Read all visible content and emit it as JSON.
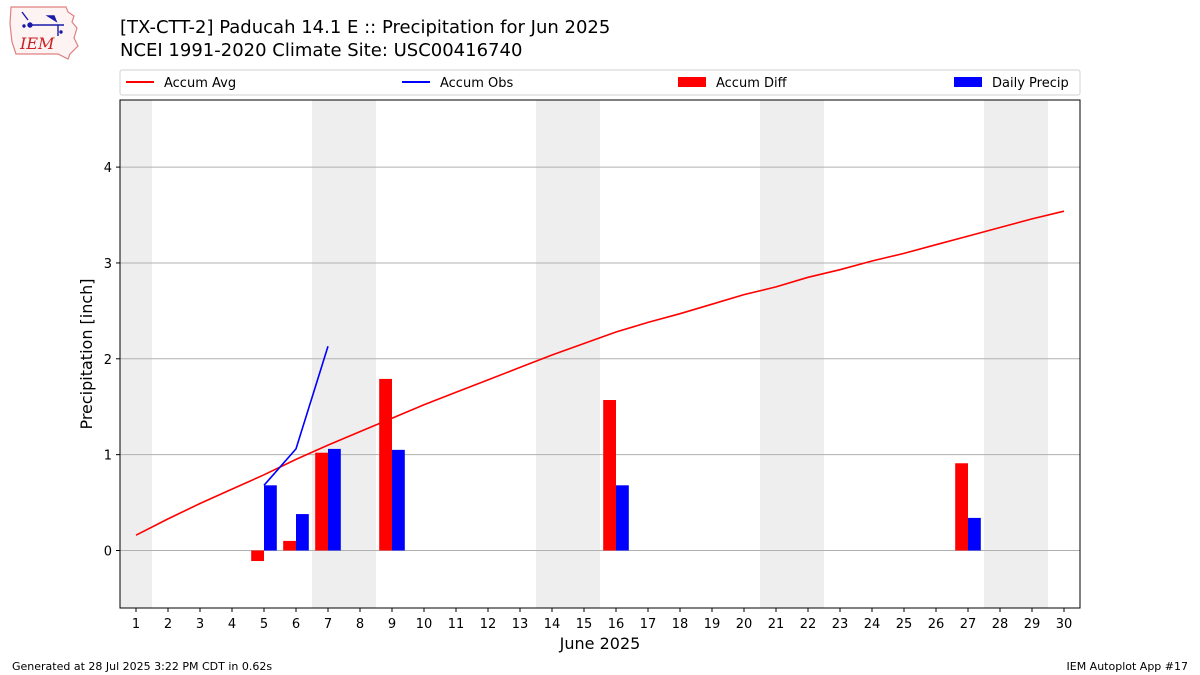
{
  "header": {
    "title": "[TX-CTT-2] Paducah 14.1 E :: Precipitation for Jun 2025",
    "subtitle": "NCEI 1991-2020 Climate Site: USC00416740",
    "logo_text": "IEM"
  },
  "footer": {
    "generated": "Generated at 28 Jul 2025 3:22 PM CDT in 0.62s",
    "app": "IEM Autoplot App #17"
  },
  "colors": {
    "accum_avg": "#ff0000",
    "accum_obs": "#0000ff",
    "accum_diff": "#ff0000",
    "daily_precip": "#0000ff",
    "weekend_shade": "#eeeeee",
    "grid": "#b0b0b0"
  },
  "chart_data": {
    "type": "bar",
    "xlabel": "June 2025",
    "ylabel": "Precipitation [inch]",
    "xlim": [
      0.5,
      30.5
    ],
    "ylim": [
      -0.6,
      4.7
    ],
    "yticks": [
      0,
      1,
      2,
      3,
      4
    ],
    "grid": "horizontal",
    "legend_position": "top",
    "days": [
      1,
      2,
      3,
      4,
      5,
      6,
      7,
      8,
      9,
      10,
      11,
      12,
      13,
      14,
      15,
      16,
      17,
      18,
      19,
      20,
      21,
      22,
      23,
      24,
      25,
      26,
      27,
      28,
      29,
      30
    ],
    "weekend_days": [
      1,
      7,
      8,
      14,
      15,
      21,
      22,
      28,
      29
    ],
    "legend": [
      "Accum Avg",
      "Accum Obs",
      "Accum Diff",
      "Daily Precip"
    ],
    "series": [
      {
        "name": "Accum Avg",
        "kind": "line",
        "color": "#ff0000",
        "x": [
          1,
          2,
          3,
          4,
          5,
          6,
          7,
          8,
          9,
          10,
          11,
          12,
          13,
          14,
          15,
          16,
          17,
          18,
          19,
          20,
          21,
          22,
          23,
          24,
          25,
          26,
          27,
          28,
          29,
          30
        ],
        "values": [
          0.16,
          0.33,
          0.49,
          0.64,
          0.79,
          0.95,
          1.1,
          1.24,
          1.38,
          1.52,
          1.65,
          1.78,
          1.91,
          2.04,
          2.16,
          2.28,
          2.38,
          2.47,
          2.57,
          2.67,
          2.75,
          2.85,
          2.93,
          3.02,
          3.1,
          3.19,
          3.28,
          3.37,
          3.46,
          3.54
        ]
      },
      {
        "name": "Accum Obs",
        "kind": "line",
        "color": "#0000ff",
        "x": [
          5,
          6,
          7
        ],
        "values": [
          0.68,
          1.06,
          2.13
        ]
      },
      {
        "name": "Accum Diff",
        "kind": "bar",
        "color": "#ff0000",
        "x": [
          5,
          6,
          7,
          9,
          16,
          27
        ],
        "values": [
          -0.11,
          0.1,
          1.02,
          1.79,
          1.57,
          0.91
        ]
      },
      {
        "name": "Daily Precip",
        "kind": "bar",
        "color": "#0000ff",
        "x": [
          5,
          6,
          7,
          9,
          16,
          27
        ],
        "values": [
          0.68,
          0.38,
          1.06,
          1.05,
          0.68,
          0.34
        ]
      }
    ]
  }
}
